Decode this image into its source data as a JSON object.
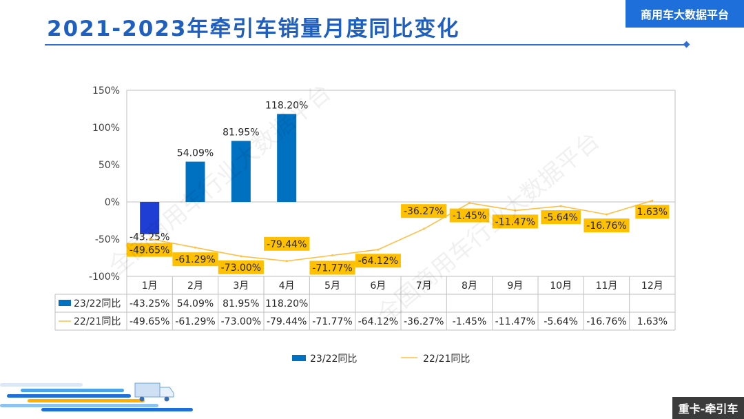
{
  "header": {
    "title": "2021-2023年牵引车销量月度同比变化",
    "brand_label": "商用车大数据平台"
  },
  "footer": {
    "tag_label": "重卡-牵引车"
  },
  "watermark": {
    "text": "全国商用车行业大数据平台"
  },
  "colors": {
    "title": "#1f5fbf",
    "bar": "#0070c0",
    "bar_highlight": "#1f3fd4",
    "line": "#ffbf45",
    "label_bg": "#ffc000",
    "brand_bg": "#1e6fd9"
  },
  "chart_data": {
    "type": "bar",
    "title": "",
    "categories": [
      "1月",
      "2月",
      "3月",
      "4月",
      "5月",
      "6月",
      "7月",
      "8月",
      "9月",
      "10月",
      "11月",
      "12月"
    ],
    "ylim": [
      -100,
      150
    ],
    "yticks": [
      -100,
      -50,
      0,
      50,
      100,
      150
    ],
    "ytick_labels": [
      "-100%",
      "-50%",
      "0%",
      "50%",
      "100%",
      "150%"
    ],
    "grid": false,
    "legend_position": "bottom",
    "series": [
      {
        "name": "23/22同比",
        "kind": "bar",
        "values": [
          -43.25,
          54.09,
          81.95,
          118.2,
          null,
          null,
          null,
          null,
          null,
          null,
          null,
          null
        ],
        "labels": [
          "-43.25%",
          "54.09%",
          "81.95%",
          "118.20%",
          "",
          "",
          "",
          "",
          "",
          "",
          "",
          ""
        ]
      },
      {
        "name": "22/21同比",
        "kind": "line",
        "values": [
          -49.65,
          -61.29,
          -73.0,
          -79.44,
          -71.77,
          -64.12,
          -36.27,
          -1.45,
          -11.47,
          -5.64,
          -16.76,
          1.63
        ],
        "labels": [
          "-49.65%",
          "-61.29%",
          "-73.00%",
          "-79.44%",
          "-71.77%",
          "-64.12%",
          "-36.27%",
          "-1.45%",
          "-11.47%",
          "-5.64%",
          "-16.76%",
          "1.63%"
        ]
      }
    ]
  }
}
